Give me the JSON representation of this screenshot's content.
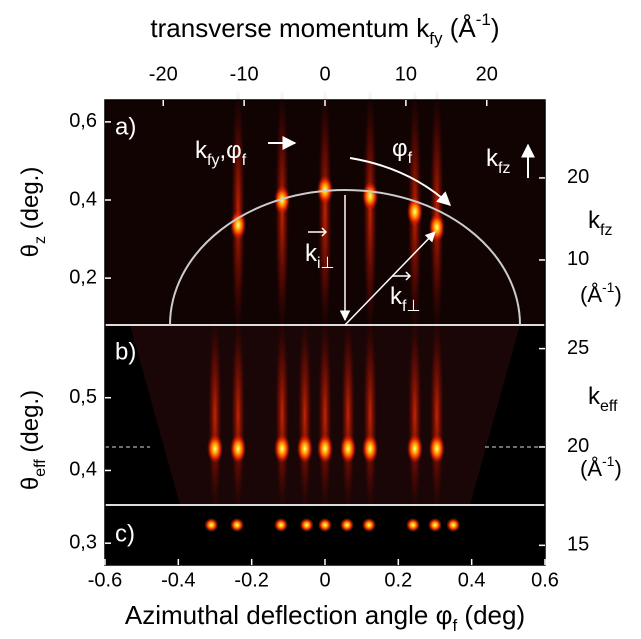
{
  "chart_data": [
    {
      "type": "scatter",
      "panel_label": "a)",
      "x2label": [
        {
          "t": "transverse momentum k"
        },
        {
          "sub": "fy"
        },
        {
          "t": " (Å"
        },
        {
          "sup": "-1"
        },
        {
          "t": ")"
        }
      ],
      "x2lim": [
        -27.2,
        27.2
      ],
      "x2ticks": [
        -20,
        -10,
        0,
        10,
        20
      ],
      "xlim": [
        -0.6,
        0.6
      ],
      "ylabel": [
        {
          "t": "θ"
        },
        {
          "sub": "z"
        },
        {
          "t": " (deg.)"
        }
      ],
      "ylim": [
        0.08,
        0.656
      ],
      "yticks": [
        {
          "value": 0.2,
          "label": "0,2"
        },
        {
          "value": 0.4,
          "label": "0,4"
        },
        {
          "value": 0.6,
          "label": "0,6"
        }
      ],
      "y2label": [
        {
          "t": "k"
        },
        {
          "sub": "fz"
        }
      ],
      "y2unit": [
        {
          "t": "(Å"
        },
        {
          "sup": "-1"
        },
        {
          "t": ")"
        }
      ],
      "y2lim": [
        2.07,
        29.5
      ],
      "y2ticks": [
        10,
        20
      ],
      "annotations": [
        [
          {
            "t": "k"
          },
          {
            "sub": "fy"
          },
          {
            "t": ",φ"
          },
          {
            "sub": "f"
          }
        ],
        [
          {
            "t": "φ"
          },
          {
            "sub": "f"
          }
        ],
        [
          {
            "t": "k"
          },
          {
            "sub": "fz"
          }
        ],
        [
          {
            "t": "k"
          },
          {
            "sub": "i⊥"
          }
        ],
        [
          {
            "t": "k"
          },
          {
            "sub": "f⊥"
          }
        ]
      ],
      "x": [
        -0.237,
        -0.117,
        0,
        0.123,
        0.245,
        0.305
      ],
      "y": [
        0.336,
        0.4,
        0.426,
        0.41,
        0.37,
        0.33
      ],
      "color": "#ff2a00"
    },
    {
      "type": "scatter",
      "panel_label": "b)",
      "xlim": [
        -0.6,
        0.6
      ],
      "ylabel": [
        {
          "t": "θ"
        },
        {
          "sub": "eff"
        },
        {
          "t": " (deg.)"
        }
      ],
      "ylim": [
        0.3525,
        0.6
      ],
      "yticks": [
        {
          "value": 0.4,
          "label": "0,4"
        },
        {
          "value": 0.5,
          "label": "0,5"
        }
      ],
      "y2label": [
        {
          "t": "k"
        },
        {
          "sub": "eff"
        }
      ],
      "y2unit": [
        {
          "t": "(Å"
        },
        {
          "sup": "-1"
        },
        {
          "t": ")"
        }
      ],
      "y2lim": [
        17.05,
        26.2
      ],
      "y2ticks": [
        20,
        25
      ],
      "x": [
        -0.3,
        -0.237,
        -0.117,
        -0.055,
        0,
        0.063,
        0.123,
        0.245,
        0.305
      ],
      "y": [
        0.43,
        0.43,
        0.43,
        0.43,
        0.43,
        0.43,
        0.43,
        0.43,
        0.43
      ],
      "color": "#ff2a00"
    },
    {
      "type": "scatter",
      "panel_label": "c)",
      "xlabel": [
        {
          "t": "Azimuthal deflection angle φ"
        },
        {
          "sub": "f"
        },
        {
          "t": " (deg)"
        }
      ],
      "xlim": [
        -0.6,
        0.6
      ],
      "xticks": [
        -0.6,
        -0.4,
        -0.2,
        0,
        0.2,
        0.4,
        0.6
      ],
      "ylim": [
        0.27,
        0.3525
      ],
      "yticks": [
        {
          "value": 0.3,
          "label": "0,3"
        }
      ],
      "y2lim": [
        14,
        17.05
      ],
      "y2ticks": [
        15
      ],
      "x": [
        -0.31,
        -0.24,
        -0.12,
        -0.05,
        0,
        0.06,
        0.12,
        0.24,
        0.3,
        0.35
      ],
      "y": [
        0.325,
        0.325,
        0.325,
        0.325,
        0.325,
        0.325,
        0.325,
        0.325,
        0.325,
        0.325
      ],
      "color": "#ff8000"
    }
  ]
}
